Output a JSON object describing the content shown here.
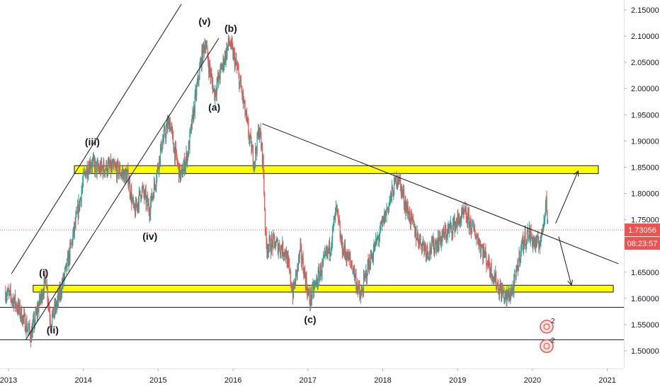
{
  "chart_data": {
    "type": "candlestick",
    "x_ticks": [
      "2013",
      "2014",
      "2015",
      "2016",
      "2017",
      "2018",
      "2019",
      "2020",
      "2021"
    ],
    "y_ticks": [
      "2.15000",
      "2.10000",
      "2.05000",
      "2.00000",
      "1.95000",
      "1.90000",
      "1.85000",
      "1.80000",
      "1.75000",
      "1.70000",
      "1.65000",
      "1.60000",
      "1.55000",
      "1.50000"
    ],
    "ylim": [
      1.49,
      2.16
    ],
    "xlim": [
      2012.96,
      2020.98
    ],
    "price": {
      "value": "1.73056",
      "countdown": "08:23:57",
      "y": 1.73056
    },
    "colors": {
      "up": "#26a69a",
      "down": "#ef5350",
      "zone": "#ffff00",
      "price_tag": "#ef5350",
      "countdown_tag": "#ef5350"
    },
    "wave_labels": [
      {
        "text": "(i)",
        "x": 2013.47,
        "y": 1.642
      },
      {
        "text": "(ii)",
        "x": 2013.59,
        "y": 1.533
      },
      {
        "text": "(iii)",
        "x": 2014.12,
        "y": 1.892
      },
      {
        "text": "(iv)",
        "x": 2014.89,
        "y": 1.712
      },
      {
        "text": "(v)",
        "x": 2015.62,
        "y": 2.122
      },
      {
        "text": "(a)",
        "x": 2015.75,
        "y": 1.958
      },
      {
        "text": "(b)",
        "x": 2015.97,
        "y": 2.108
      },
      {
        "text": "(c)",
        "x": 2017.03,
        "y": 1.553
      }
    ],
    "zones": [
      {
        "x1": 2013.88,
        "x2": 2020.88,
        "y1": 1.838,
        "y2": 1.853
      },
      {
        "x1": 2013.33,
        "x2": 2021.08,
        "y1": 1.612,
        "y2": 1.625
      }
    ],
    "lines": [
      {
        "x1": 2013.04,
        "y1": 1.647,
        "x2": 2015.31,
        "y2": 2.161
      },
      {
        "x1": 2013.23,
        "y1": 1.521,
        "x2": 2015.81,
        "y2": 2.096
      },
      {
        "x1": 2016.39,
        "y1": 1.933,
        "x2": 2021.15,
        "y2": 1.666
      },
      {
        "x1": 2016.39,
        "y1": 1.933,
        "x2": 2016.39,
        "y2": 1.933
      }
    ],
    "hlines": [
      1.583,
      1.521
    ],
    "arrows": [
      {
        "x1": 2020.31,
        "y1": 1.743,
        "x2": 2020.61,
        "y2": 1.843
      },
      {
        "x1": 2020.35,
        "y1": 1.718,
        "x2": 2020.52,
        "y2": 1.625
      }
    ],
    "events": [
      {
        "text": "2",
        "x": 2020.19,
        "y": 1.546
      },
      {
        "text": "2",
        "x": 2020.19,
        "y": 1.509
      }
    ],
    "path": [
      [
        2012.96,
        1.612
      ],
      [
        2013.08,
        1.595
      ],
      [
        2013.2,
        1.56
      ],
      [
        2013.3,
        1.53
      ],
      [
        2013.4,
        1.585
      ],
      [
        2013.5,
        1.64
      ],
      [
        2013.56,
        1.555
      ],
      [
        2013.65,
        1.59
      ],
      [
        2013.78,
        1.66
      ],
      [
        2013.92,
        1.76
      ],
      [
        2014.02,
        1.84
      ],
      [
        2014.1,
        1.86
      ],
      [
        2014.2,
        1.845
      ],
      [
        2014.3,
        1.85
      ],
      [
        2014.45,
        1.845
      ],
      [
        2014.6,
        1.83
      ],
      [
        2014.68,
        1.762
      ],
      [
        2014.78,
        1.808
      ],
      [
        2014.88,
        1.77
      ],
      [
        2014.95,
        1.815
      ],
      [
        2015.05,
        1.895
      ],
      [
        2015.15,
        1.94
      ],
      [
        2015.22,
        1.88
      ],
      [
        2015.3,
        1.83
      ],
      [
        2015.4,
        1.88
      ],
      [
        2015.5,
        1.985
      ],
      [
        2015.58,
        2.06
      ],
      [
        2015.63,
        2.09
      ],
      [
        2015.68,
        2.04
      ],
      [
        2015.75,
        1.99
      ],
      [
        2015.85,
        2.04
      ],
      [
        2015.95,
        2.09
      ],
      [
        2016.05,
        2.04
      ],
      [
        2016.12,
        1.99
      ],
      [
        2016.2,
        1.92
      ],
      [
        2016.28,
        1.86
      ],
      [
        2016.35,
        1.925
      ],
      [
        2016.4,
        1.86
      ],
      [
        2016.44,
        1.7
      ],
      [
        2016.55,
        1.705
      ],
      [
        2016.7,
        1.69
      ],
      [
        2016.8,
        1.61
      ],
      [
        2016.9,
        1.69
      ],
      [
        2017.02,
        1.595
      ],
      [
        2017.15,
        1.645
      ],
      [
        2017.3,
        1.7
      ],
      [
        2017.38,
        1.77
      ],
      [
        2017.45,
        1.7
      ],
      [
        2017.6,
        1.66
      ],
      [
        2017.7,
        1.6
      ],
      [
        2017.8,
        1.66
      ],
      [
        2017.95,
        1.72
      ],
      [
        2018.08,
        1.78
      ],
      [
        2018.2,
        1.835
      ],
      [
        2018.3,
        1.78
      ],
      [
        2018.45,
        1.72
      ],
      [
        2018.6,
        1.69
      ],
      [
        2018.75,
        1.71
      ],
      [
        2018.95,
        1.74
      ],
      [
        2019.1,
        1.76
      ],
      [
        2019.25,
        1.72
      ],
      [
        2019.4,
        1.67
      ],
      [
        2019.55,
        1.62
      ],
      [
        2019.65,
        1.6
      ],
      [
        2019.75,
        1.62
      ],
      [
        2019.85,
        1.7
      ],
      [
        2019.95,
        1.725
      ],
      [
        2020.05,
        1.7
      ],
      [
        2020.12,
        1.715
      ],
      [
        2020.18,
        1.79
      ],
      [
        2020.21,
        1.73
      ]
    ]
  }
}
